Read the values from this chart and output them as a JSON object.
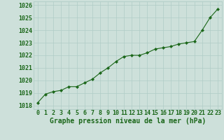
{
  "x": [
    0,
    1,
    2,
    3,
    4,
    5,
    6,
    7,
    8,
    9,
    10,
    11,
    12,
    13,
    14,
    15,
    16,
    17,
    18,
    19,
    20,
    21,
    22,
    23
  ],
  "y": [
    1018.2,
    1018.9,
    1019.1,
    1019.2,
    1019.5,
    1019.5,
    1019.8,
    1020.1,
    1020.6,
    1021.0,
    1021.5,
    1021.9,
    1022.0,
    1022.0,
    1022.2,
    1022.5,
    1022.6,
    1022.7,
    1022.9,
    1023.0,
    1023.1,
    1024.0,
    1025.0,
    1025.7
  ],
  "line_color": "#1a6618",
  "marker": "D",
  "marker_size": 2.2,
  "bg_color": "#cde0da",
  "plot_bg_color": "#cde0da",
  "grid_color": "#b0ccc6",
  "xlabel": "Graphe pression niveau de la mer (hPa)",
  "xlabel_color": "#1a6618",
  "xlabel_fontsize": 7.0,
  "ylabel_ticks": [
    1018,
    1019,
    1020,
    1021,
    1022,
    1023,
    1024,
    1025,
    1026
  ],
  "ylim": [
    1017.7,
    1026.3
  ],
  "xlim": [
    -0.5,
    23.5
  ],
  "tick_color": "#1a6618",
  "tick_fontsize": 6.0
}
